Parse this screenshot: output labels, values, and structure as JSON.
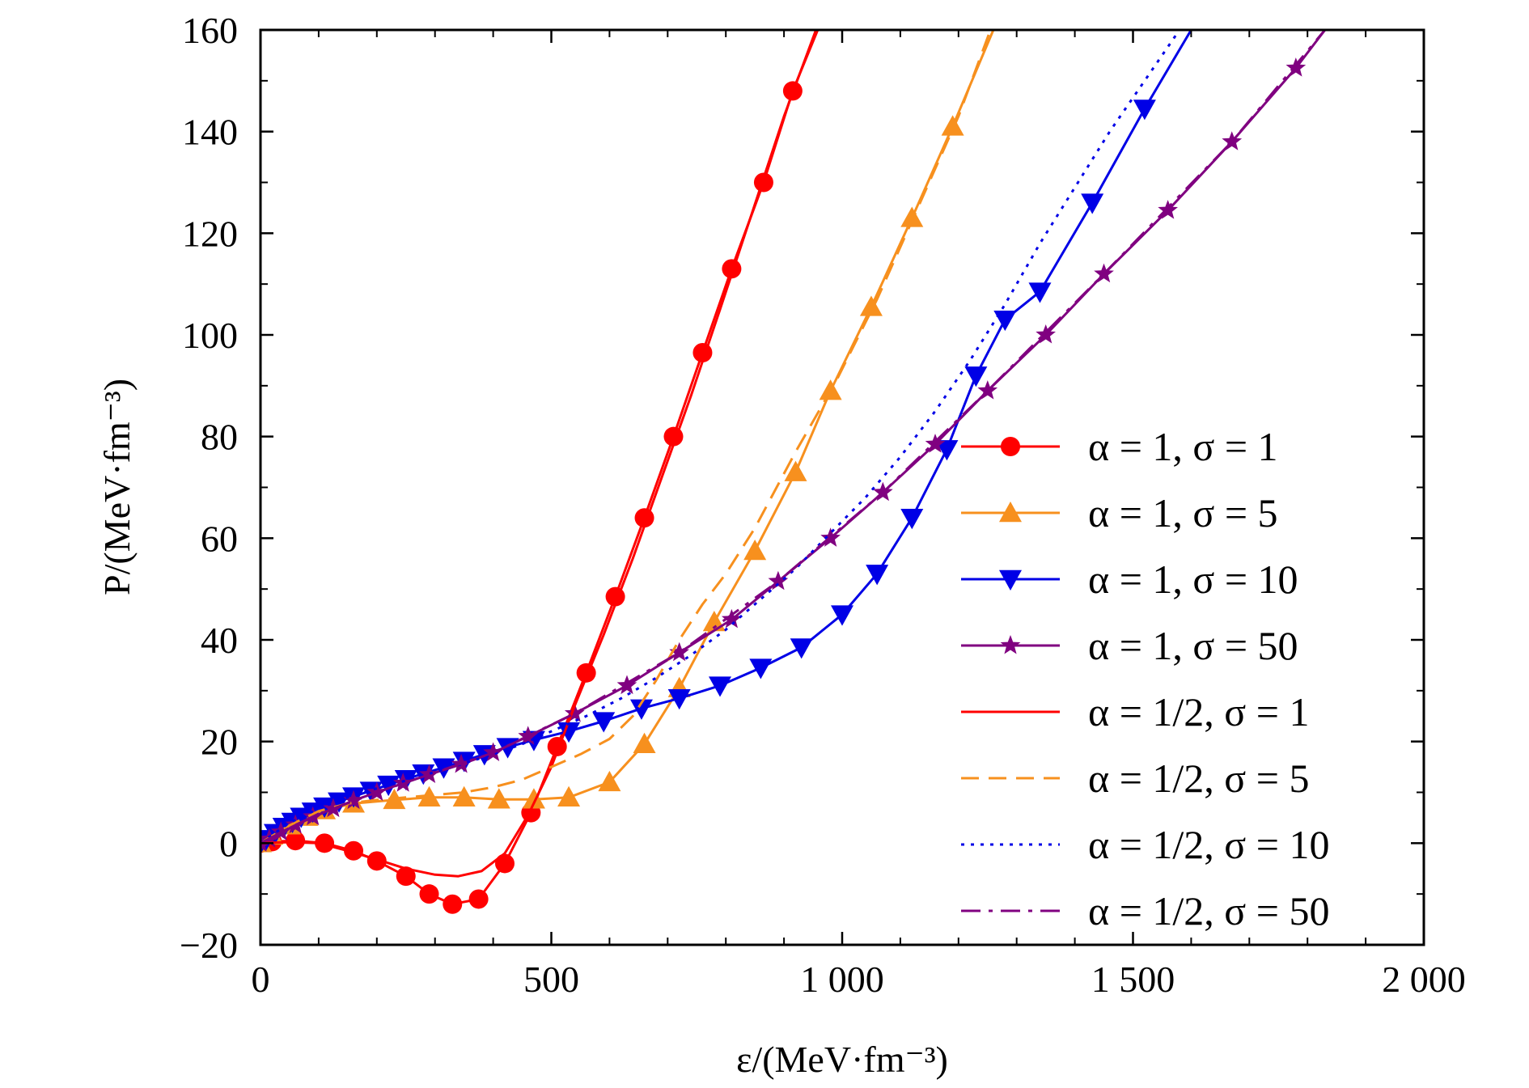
{
  "chart_data": {
    "type": "line",
    "xlabel": "ε/(MeV·fm⁻³)",
    "ylabel": "P/(MeV·fm⁻³)",
    "xlim": [
      0,
      2000
    ],
    "ylim": [
      -20,
      160
    ],
    "xticks": [
      0,
      500,
      1000,
      1500,
      2000
    ],
    "xtick_labels": [
      "0",
      "500",
      "1 000",
      "1 500",
      "2 000"
    ],
    "yticks": [
      -20,
      0,
      20,
      40,
      60,
      80,
      100,
      120,
      140,
      160
    ],
    "ytick_labels": [
      "−20",
      "0",
      "20",
      "40",
      "60",
      "80",
      "100",
      "120",
      "140",
      "160"
    ],
    "grid": false,
    "legend_position": "lower-right",
    "series": [
      {
        "name": "α = 1, σ = 1",
        "color": "#ff0000",
        "dash": "solid",
        "marker": "circle",
        "points": [
          [
            0,
            0
          ],
          [
            20,
            0.3
          ],
          [
            60,
            0.5
          ],
          [
            110,
            0
          ],
          [
            160,
            -1.5
          ],
          [
            200,
            -3.5
          ],
          [
            250,
            -6.5
          ],
          [
            290,
            -10
          ],
          [
            330,
            -12
          ],
          [
            375,
            -11
          ],
          [
            420,
            -4
          ],
          [
            465,
            6
          ],
          [
            510,
            19
          ],
          [
            560,
            33.5
          ],
          [
            610,
            48.5
          ],
          [
            660,
            64
          ],
          [
            710,
            80
          ],
          [
            760,
            96.5
          ],
          [
            810,
            113
          ],
          [
            865,
            130
          ],
          [
            915,
            148
          ],
          [
            958,
            160
          ]
        ]
      },
      {
        "name": "α = 1, σ = 5",
        "color": "#f7901e",
        "dash": "solid",
        "marker": "triangle-up",
        "points": [
          [
            0,
            0
          ],
          [
            20,
            1.5
          ],
          [
            50,
            3.5
          ],
          [
            80,
            5.2
          ],
          [
            110,
            6.5
          ],
          [
            160,
            7.8
          ],
          [
            230,
            8.5
          ],
          [
            290,
            9
          ],
          [
            350,
            9
          ],
          [
            410,
            8.6
          ],
          [
            470,
            8.6
          ],
          [
            530,
            9
          ],
          [
            600,
            12
          ],
          [
            660,
            19.5
          ],
          [
            720,
            30.5
          ],
          [
            780,
            43.5
          ],
          [
            850,
            57.5
          ],
          [
            920,
            73
          ],
          [
            980,
            89
          ],
          [
            1050,
            105.5
          ],
          [
            1120,
            123
          ],
          [
            1190,
            141
          ],
          [
            1260,
            160
          ]
        ]
      },
      {
        "name": "α = 1, σ = 10",
        "color": "#0000e6",
        "dash": "solid",
        "marker": "triangle-down",
        "points": [
          [
            0,
            0
          ],
          [
            10,
            0.8
          ],
          [
            25,
            2
          ],
          [
            40,
            3.2
          ],
          [
            55,
            4.2
          ],
          [
            70,
            5.2
          ],
          [
            90,
            6.2
          ],
          [
            110,
            7.2
          ],
          [
            135,
            8.2
          ],
          [
            160,
            9.2
          ],
          [
            190,
            10.3
          ],
          [
            220,
            11.5
          ],
          [
            250,
            12.6
          ],
          [
            280,
            13.7
          ],
          [
            315,
            14.9
          ],
          [
            350,
            16.2
          ],
          [
            385,
            17.5
          ],
          [
            425,
            18.9
          ],
          [
            470,
            20.3
          ],
          [
            530,
            22
          ],
          [
            590,
            24
          ],
          [
            655,
            26.5
          ],
          [
            720,
            28.5
          ],
          [
            790,
            31
          ],
          [
            860,
            34.5
          ],
          [
            930,
            38.5
          ],
          [
            1000,
            45
          ],
          [
            1060,
            53
          ],
          [
            1120,
            64
          ],
          [
            1180,
            77.5
          ],
          [
            1230,
            92
          ],
          [
            1280,
            103
          ],
          [
            1340,
            108.5
          ],
          [
            1430,
            126
          ],
          [
            1520,
            144.5
          ],
          [
            1600,
            160
          ]
        ]
      },
      {
        "name": "α = 1, σ = 50",
        "color": "#800080",
        "dash": "solid",
        "marker": "star",
        "points": [
          [
            0,
            0
          ],
          [
            15,
            0.8
          ],
          [
            35,
            2.2
          ],
          [
            60,
            3.6
          ],
          [
            90,
            5.2
          ],
          [
            125,
            6.8
          ],
          [
            160,
            8.4
          ],
          [
            200,
            10
          ],
          [
            245,
            11.8
          ],
          [
            290,
            13.5
          ],
          [
            345,
            15.5
          ],
          [
            400,
            17.8
          ],
          [
            460,
            21
          ],
          [
            540,
            25.5
          ],
          [
            630,
            31
          ],
          [
            720,
            37.5
          ],
          [
            810,
            44
          ],
          [
            890,
            51.5
          ],
          [
            980,
            60
          ],
          [
            1070,
            69
          ],
          [
            1160,
            78.5
          ],
          [
            1250,
            89
          ],
          [
            1350,
            100
          ],
          [
            1450,
            112
          ],
          [
            1560,
            124.5
          ],
          [
            1670,
            138
          ],
          [
            1780,
            152.5
          ],
          [
            1830,
            160
          ]
        ]
      },
      {
        "name": "α = 1/2, σ = 1",
        "color": "#ff0000",
        "dash": "solid",
        "marker": "none",
        "points": [
          [
            0,
            0
          ],
          [
            50,
            0.2
          ],
          [
            100,
            0
          ],
          [
            150,
            -1.5
          ],
          [
            200,
            -3.2
          ],
          [
            250,
            -5
          ],
          [
            300,
            -6.2
          ],
          [
            340,
            -6.5
          ],
          [
            380,
            -5.5
          ],
          [
            420,
            -2
          ],
          [
            460,
            5.5
          ],
          [
            500,
            15
          ],
          [
            540,
            27
          ],
          [
            590,
            41
          ],
          [
            640,
            56
          ],
          [
            690,
            72
          ],
          [
            740,
            88
          ],
          [
            790,
            105
          ],
          [
            845,
            124
          ],
          [
            900,
            143
          ],
          [
            955,
            160
          ]
        ]
      },
      {
        "name": "α = 1/2, σ = 5",
        "color": "#f7901e",
        "dash": "dashed",
        "marker": "none",
        "points": [
          [
            0,
            0
          ],
          [
            50,
            3.5
          ],
          [
            100,
            6.3
          ],
          [
            150,
            7.8
          ],
          [
            200,
            8.5
          ],
          [
            250,
            9
          ],
          [
            300,
            9.5
          ],
          [
            350,
            10
          ],
          [
            400,
            11
          ],
          [
            450,
            12.5
          ],
          [
            500,
            15
          ],
          [
            550,
            17.5
          ],
          [
            600,
            20.5
          ],
          [
            640,
            25
          ],
          [
            680,
            32
          ],
          [
            720,
            40
          ],
          [
            760,
            47
          ],
          [
            800,
            53
          ],
          [
            850,
            62
          ],
          [
            920,
            77
          ],
          [
            990,
            91
          ],
          [
            1060,
            107
          ],
          [
            1130,
            125
          ],
          [
            1200,
            143
          ],
          [
            1255,
            160
          ]
        ]
      },
      {
        "name": "α = 1/2, σ = 10",
        "color": "#0000e6",
        "dash": "dotted",
        "marker": "none",
        "points": [
          [
            0,
            0
          ],
          [
            50,
            4
          ],
          [
            100,
            6.8
          ],
          [
            150,
            9
          ],
          [
            200,
            10.8
          ],
          [
            250,
            12.3
          ],
          [
            300,
            14
          ],
          [
            350,
            15.7
          ],
          [
            400,
            17.5
          ],
          [
            450,
            19.5
          ],
          [
            500,
            22
          ],
          [
            560,
            25
          ],
          [
            620,
            28.5
          ],
          [
            680,
            32.5
          ],
          [
            740,
            37
          ],
          [
            800,
            42
          ],
          [
            860,
            48
          ],
          [
            920,
            54
          ],
          [
            980,
            61
          ],
          [
            1040,
            68
          ],
          [
            1100,
            76
          ],
          [
            1160,
            85
          ],
          [
            1220,
            95
          ],
          [
            1280,
            106
          ],
          [
            1340,
            118
          ],
          [
            1400,
            129
          ],
          [
            1460,
            140
          ],
          [
            1520,
            150
          ],
          [
            1580,
            160
          ]
        ]
      },
      {
        "name": "α = 1/2, σ = 50",
        "color": "#800080",
        "dash": "dashdot",
        "marker": "none",
        "points": [
          [
            0,
            0
          ],
          [
            60,
            3.6
          ],
          [
            125,
            6.8
          ],
          [
            200,
            10
          ],
          [
            290,
            13.5
          ],
          [
            400,
            17.8
          ],
          [
            540,
            25.5
          ],
          [
            720,
            37.5
          ],
          [
            890,
            51.5
          ],
          [
            1070,
            69
          ],
          [
            1250,
            89
          ],
          [
            1450,
            112
          ],
          [
            1670,
            138
          ],
          [
            1830,
            160
          ]
        ]
      }
    ]
  }
}
